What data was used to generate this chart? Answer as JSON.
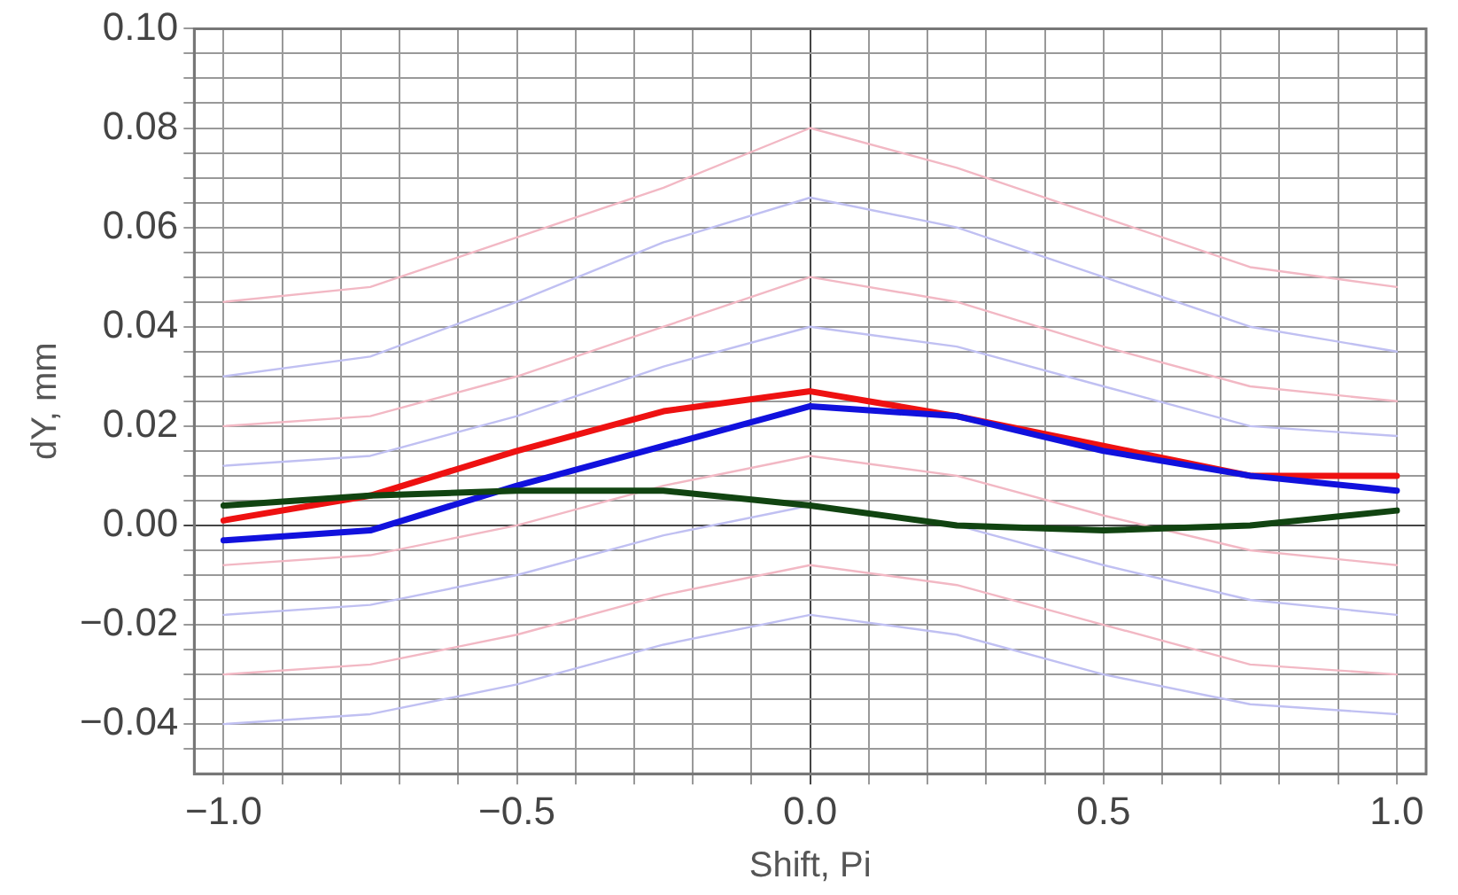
{
  "chart_data": {
    "type": "line",
    "xlabel": "Shift, Pi",
    "ylabel": "dY, mm",
    "x": [
      -1,
      -0.75,
      -0.5,
      -0.25,
      0,
      0.25,
      0.5,
      0.75,
      1
    ],
    "xlim": [
      -1.05,
      1.05
    ],
    "ylim": [
      -0.05,
      0.1
    ],
    "xticks": [
      {
        "value": -1,
        "label": "−1.0"
      },
      {
        "value": -0.9,
        "label": null
      },
      {
        "value": -0.8,
        "label": null
      },
      {
        "value": -0.7,
        "label": null
      },
      {
        "value": -0.6,
        "label": null
      },
      {
        "value": -0.5,
        "label": "−0.5"
      },
      {
        "value": -0.4,
        "label": null
      },
      {
        "value": -0.3,
        "label": null
      },
      {
        "value": -0.2,
        "label": null
      },
      {
        "value": -0.1,
        "label": null
      },
      {
        "value": 0,
        "label": "0.0"
      },
      {
        "value": 0.1,
        "label": null
      },
      {
        "value": 0.2,
        "label": null
      },
      {
        "value": 0.3,
        "label": null
      },
      {
        "value": 0.4,
        "label": null
      },
      {
        "value": 0.5,
        "label": "0.5"
      },
      {
        "value": 0.6,
        "label": null
      },
      {
        "value": 0.7,
        "label": null
      },
      {
        "value": 0.8,
        "label": null
      },
      {
        "value": 0.9,
        "label": null
      },
      {
        "value": 1,
        "label": "1.0"
      }
    ],
    "yticks": [
      {
        "value": -0.045,
        "label": null
      },
      {
        "value": -0.04,
        "label": "−0.04"
      },
      {
        "value": -0.035,
        "label": null
      },
      {
        "value": -0.03,
        "label": null
      },
      {
        "value": -0.025,
        "label": null
      },
      {
        "value": -0.02,
        "label": "−0.02"
      },
      {
        "value": -0.015,
        "label": null
      },
      {
        "value": -0.01,
        "label": null
      },
      {
        "value": -0.005,
        "label": null
      },
      {
        "value": 0,
        "label": "0.00"
      },
      {
        "value": 0.005,
        "label": null
      },
      {
        "value": 0.01,
        "label": null
      },
      {
        "value": 0.015,
        "label": null
      },
      {
        "value": 0.02,
        "label": "0.02"
      },
      {
        "value": 0.025,
        "label": null
      },
      {
        "value": 0.03,
        "label": null
      },
      {
        "value": 0.035,
        "label": null
      },
      {
        "value": 0.04,
        "label": "0.04"
      },
      {
        "value": 0.045,
        "label": null
      },
      {
        "value": 0.05,
        "label": null
      },
      {
        "value": 0.055,
        "label": null
      },
      {
        "value": 0.06,
        "label": "0.06"
      },
      {
        "value": 0.065,
        "label": null
      },
      {
        "value": 0.07,
        "label": null
      },
      {
        "value": 0.075,
        "label": null
      },
      {
        "value": 0.08,
        "label": "0.08"
      },
      {
        "value": 0.085,
        "label": null
      },
      {
        "value": 0.09,
        "label": null
      },
      {
        "value": 0.095,
        "label": null
      },
      {
        "value": 0.1,
        "label": "0.10"
      }
    ],
    "grid": true,
    "legend": false,
    "marker": "none",
    "line_style": "solid",
    "series": [
      {
        "color": "#f2b8c4",
        "values": [
          0.045,
          0.048,
          0.058,
          0.068,
          0.08,
          0.072,
          0.062,
          0.052,
          0.048
        ]
      },
      {
        "color": "#c0c0f2",
        "values": [
          0.03,
          0.034,
          0.045,
          0.057,
          0.066,
          0.06,
          0.05,
          0.04,
          0.035
        ]
      },
      {
        "color": "#f2b8c4",
        "values": [
          0.02,
          0.022,
          0.03,
          0.04,
          0.05,
          0.045,
          0.036,
          0.028,
          0.025
        ]
      },
      {
        "color": "#c0c0f2",
        "values": [
          0.012,
          0.014,
          0.022,
          0.032,
          0.04,
          0.036,
          0.028,
          0.02,
          0.018
        ]
      },
      {
        "color": "#f2b8c4",
        "values": [
          -0.008,
          -0.006,
          0.0,
          0.008,
          0.014,
          0.01,
          0.002,
          -0.005,
          -0.008
        ]
      },
      {
        "color": "#c0c0f2",
        "values": [
          -0.018,
          -0.016,
          -0.01,
          -0.002,
          0.004,
          0.0,
          -0.008,
          -0.015,
          -0.018
        ]
      },
      {
        "color": "#f2b8c4",
        "values": [
          -0.03,
          -0.028,
          -0.022,
          -0.014,
          -0.008,
          -0.012,
          -0.02,
          -0.028,
          -0.03
        ]
      },
      {
        "color": "#c0c0f2",
        "values": [
          -0.04,
          -0.038,
          -0.032,
          -0.024,
          -0.018,
          -0.022,
          -0.03,
          -0.036,
          -0.038
        ]
      },
      {
        "color": "#ee1111",
        "values": [
          0.001,
          0.006,
          0.015,
          0.023,
          0.027,
          0.022,
          0.016,
          0.01,
          0.01
        ]
      },
      {
        "color": "#1111dd",
        "values": [
          -0.003,
          -0.001,
          0.008,
          0.016,
          0.024,
          0.022,
          0.015,
          0.01,
          0.007
        ]
      },
      {
        "color": "#114411",
        "values": [
          0.004,
          0.006,
          0.007,
          0.007,
          0.004,
          0.0,
          -0.001,
          0.0,
          0.003
        ]
      }
    ]
  }
}
